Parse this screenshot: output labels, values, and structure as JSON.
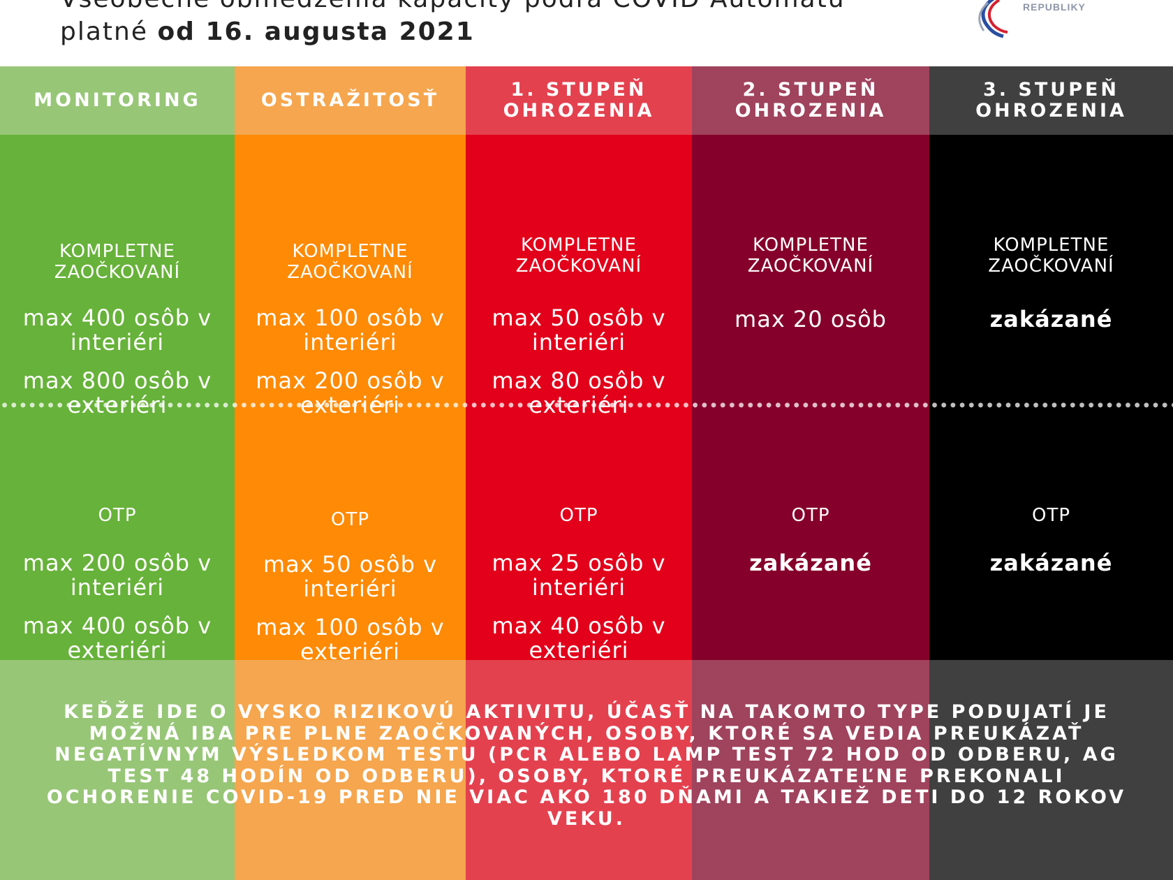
{
  "header": {
    "title_line1": "Všeobecné obmedzenia kapacity podľa COVID Automatu",
    "title_line2_prefix": "platné ",
    "title_line2_bold": "od 16. augusta 2021",
    "logo_text": "REPUBLIKY",
    "logo_colors": [
      "#2a4fa0",
      "#d6202e",
      "#9aa3b5"
    ]
  },
  "columns": [
    {
      "header": "MONITORING",
      "header_color": "#97c677",
      "body_color": "#67b23a",
      "foot_color": "#97c677",
      "vaccinated_label": "KOMPLETNE ZAOČKOVANÍ",
      "vaccinated_interior": "max 400 osôb v interiéri",
      "vaccinated_exterior": "max 800 osôb v exteriéri",
      "otp_label": "OTP",
      "otp_interior": "max 200 osôb v interiéri",
      "otp_exterior": "max 400 osôb v exteriéri"
    },
    {
      "header": "OSTRAŽITOSŤ",
      "header_color": "#f5a64e",
      "body_color": "#ff8a05",
      "foot_color": "#f5a64e",
      "vaccinated_label": "KOMPLETNE ZAOČKOVANÍ",
      "vaccinated_interior": "max 100 osôb v interiéri",
      "vaccinated_exterior": "max 200 osôb v exteriéri",
      "otp_label": "OTP",
      "otp_interior": "max 50 osôb v interiéri",
      "otp_exterior": "max 100 osôb v exteriéri"
    },
    {
      "header": "1. STUPEŇ OHROZENIA",
      "header_color": "#e4414f",
      "body_color": "#e2001a",
      "foot_color": "#e4414f",
      "vaccinated_label": "KOMPLETNE ZAOČKOVANÍ",
      "vaccinated_interior": "max 50 osôb v interiéri",
      "vaccinated_exterior": "max 80 osôb v exteriéri",
      "otp_label": "OTP",
      "otp_interior": "max 25 osôb v interiéri",
      "otp_exterior": "max 40 osôb v exteriéri"
    },
    {
      "header": "2. STUPEŇ OHROZENIA",
      "header_color": "#a0435d",
      "body_color": "#85002a",
      "foot_color": "#a0435d",
      "vaccinated_label": "KOMPLETNE ZAOČKOVANÍ",
      "vaccinated_limit": "max 20 osôb",
      "otp_label": "OTP",
      "otp_limit": "zakázané"
    },
    {
      "header": "3. STUPEŇ OHROZENIA",
      "header_color": "#404040",
      "body_color": "#000000",
      "foot_color": "#404040",
      "vaccinated_label": "KOMPLETNE ZAOČKOVANÍ",
      "vaccinated_limit": "zakázané",
      "otp_label": "OTP",
      "otp_limit": "zakázané"
    }
  ],
  "footer_note": "KEĎŽE IDE O VYSKO RIZIKOVÚ AKTIVITU, ÚČASŤ NA TAKOMTO TYPE PODUJATÍ JE MOŽNÁ IBA PRE PLNE ZAOČKOVANÝCH, OSOBY, KTORÉ SA VEDIA PREUKÁZAŤ NEGATÍVNYM VÝSLEDKOM TESTU (PCR ALEBO LAMP TEST 72 HOD OD ODBERU, AG TEST 48 HODÍN OD ODBERU), OSOBY, KTORÉ PREUKÁZATEĽNE PREKONALI OCHORENIE COVID-19 PRED NIE VIAC AKO 180 DŇAMI A TAKIEŽ DETI DO 12 ROKOV VEKU."
}
